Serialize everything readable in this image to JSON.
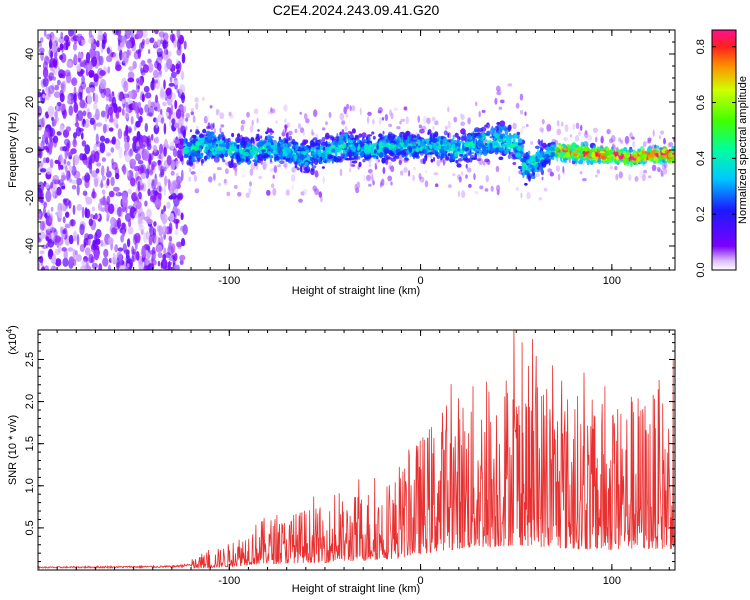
{
  "title": "C2E4.2024.243.09.41.G20",
  "chart_data": [
    {
      "type": "heatmap",
      "xlabel": "Height of straight line (km)",
      "ylabel": "Frequency (Hz)",
      "xlim": [
        -200,
        133
      ],
      "ylim": [
        -50,
        50
      ],
      "xticks": [
        {
          "v": -100,
          "label": "-100"
        },
        {
          "v": 0,
          "label": "0"
        },
        {
          "v": 100,
          "label": "100"
        }
      ],
      "yticks": [
        {
          "v": 40,
          "label": "40"
        },
        {
          "v": 20,
          "label": "20"
        },
        {
          "v": 0,
          "label": "0"
        },
        {
          "v": -20,
          "label": "-20"
        },
        {
          "v": -40,
          "label": "-40"
        }
      ],
      "colorbar": {
        "label": "Normalized spectral amplitude",
        "range": [
          0,
          0.86
        ],
        "ticks": [
          {
            "v": 0.0,
            "label": "0.0"
          },
          {
            "v": 0.2,
            "label": "0.2"
          },
          {
            "v": 0.4,
            "label": "0.4"
          },
          {
            "v": 0.6,
            "label": "0.6"
          },
          {
            "v": 0.8,
            "label": "0.8"
          }
        ]
      },
      "noise_region_x": [
        -200,
        -123
      ],
      "signal_band_center_hz": [
        [
          -123,
          0
        ],
        [
          -110,
          2
        ],
        [
          -100,
          0
        ],
        [
          -90,
          -1
        ],
        [
          -80,
          1
        ],
        [
          -70,
          0
        ],
        [
          -60,
          -3
        ],
        [
          -50,
          -1
        ],
        [
          -40,
          2
        ],
        [
          -30,
          0
        ],
        [
          -20,
          1
        ],
        [
          -10,
          2
        ],
        [
          0,
          1
        ],
        [
          10,
          2
        ],
        [
          20,
          0
        ],
        [
          30,
          3
        ],
        [
          40,
          4
        ],
        [
          50,
          3
        ],
        [
          55,
          -8
        ],
        [
          60,
          -5
        ],
        [
          70,
          0
        ],
        [
          80,
          -1
        ],
        [
          90,
          -2
        ],
        [
          100,
          -2
        ],
        [
          110,
          -3
        ],
        [
          120,
          -2
        ],
        [
          133,
          -2
        ]
      ],
      "signal_band_halfwidth_hz": [
        [
          -123,
          6
        ],
        [
          -110,
          7
        ],
        [
          -100,
          6
        ],
        [
          -80,
          6
        ],
        [
          -60,
          6
        ],
        [
          -40,
          6
        ],
        [
          -20,
          5
        ],
        [
          0,
          5
        ],
        [
          20,
          6
        ],
        [
          40,
          7
        ],
        [
          50,
          8
        ],
        [
          55,
          8
        ],
        [
          70,
          4
        ],
        [
          100,
          3
        ],
        [
          133,
          3
        ]
      ]
    },
    {
      "type": "line",
      "xlabel": "Height of straight line (km)",
      "ylabel": "SNR (10 * v/v)",
      "yscale_label": "(x10",
      "yscale_exp": "4",
      "xlim": [
        -200,
        133
      ],
      "ylim": [
        0,
        2.85
      ],
      "line_color": "#e83030",
      "xticks": [
        {
          "v": -100,
          "label": "-100"
        },
        {
          "v": 0,
          "label": "0"
        },
        {
          "v": 100,
          "label": "100"
        }
      ],
      "yticks": [
        {
          "v": 0.5,
          "label": "0.5"
        },
        {
          "v": 1.0,
          "label": "1.0"
        },
        {
          "v": 1.5,
          "label": "1.5"
        },
        {
          "v": 2.0,
          "label": "2.0"
        },
        {
          "v": 2.5,
          "label": "2.5"
        }
      ],
      "envelope": [
        [
          -200,
          0.03
        ],
        [
          -130,
          0.04
        ],
        [
          -120,
          0.06
        ],
        [
          -110,
          0.1
        ],
        [
          -100,
          0.15
        ],
        [
          -90,
          0.25
        ],
        [
          -80,
          0.3
        ],
        [
          -70,
          0.3
        ],
        [
          -60,
          0.35
        ],
        [
          -50,
          0.35
        ],
        [
          -40,
          0.4
        ],
        [
          -30,
          0.45
        ],
        [
          -20,
          0.5
        ],
        [
          -10,
          0.55
        ],
        [
          -5,
          0.7
        ],
        [
          0,
          0.75
        ],
        [
          10,
          0.9
        ],
        [
          20,
          1.0
        ],
        [
          30,
          1.05
        ],
        [
          40,
          1.1
        ],
        [
          50,
          1.2
        ],
        [
          60,
          1.1
        ],
        [
          70,
          1.05
        ],
        [
          80,
          1.0
        ],
        [
          90,
          0.95
        ],
        [
          100,
          0.95
        ],
        [
          110,
          1.0
        ],
        [
          120,
          1.0
        ],
        [
          133,
          1.0
        ]
      ]
    }
  ]
}
